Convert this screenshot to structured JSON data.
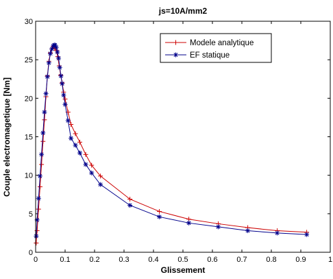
{
  "chart_data": {
    "type": "line",
    "title": "js=10A/mm2",
    "xlabel": "Glissement",
    "ylabel": "Couple electromagetique [Nm]",
    "xlim": [
      0,
      1
    ],
    "ylim": [
      0,
      30
    ],
    "xticks": [
      "0",
      "0.1",
      "0.2",
      "0.3",
      "0.4",
      "0.5",
      "0.6",
      "0.7",
      "0.8",
      "0.9",
      "1"
    ],
    "yticks": [
      "0",
      "5",
      "10",
      "15",
      "20",
      "25",
      "30"
    ],
    "grid": false,
    "legend_position": "top-right",
    "series": [
      {
        "name": "Modele analytique",
        "color": "#cc0000",
        "marker": "plus",
        "x": [
          0.002,
          0.005,
          0.01,
          0.015,
          0.02,
          0.025,
          0.03,
          0.035,
          0.04,
          0.045,
          0.05,
          0.055,
          0.06,
          0.065,
          0.07,
          0.075,
          0.08,
          0.085,
          0.09,
          0.095,
          0.1,
          0.11,
          0.12,
          0.135,
          0.15,
          0.17,
          0.19,
          0.22,
          0.32,
          0.42,
          0.52,
          0.62,
          0.72,
          0.82,
          0.92
        ],
        "y": [
          1.2,
          2.8,
          5.6,
          8.5,
          11.4,
          14.4,
          17.2,
          20.2,
          22.9,
          24.8,
          25.9,
          26.4,
          26.7,
          26.5,
          26.2,
          25.4,
          24.2,
          23.0,
          22.0,
          20.8,
          19.9,
          18.2,
          16.6,
          15.4,
          14.3,
          12.7,
          11.3,
          9.9,
          6.9,
          5.3,
          4.3,
          3.7,
          3.2,
          2.8,
          2.6
        ]
      },
      {
        "name": "EF statique",
        "color": "#00008b",
        "marker": "star",
        "x": [
          0.002,
          0.005,
          0.01,
          0.015,
          0.02,
          0.025,
          0.03,
          0.035,
          0.04,
          0.045,
          0.05,
          0.055,
          0.06,
          0.063,
          0.066,
          0.07,
          0.074,
          0.078,
          0.082,
          0.086,
          0.09,
          0.095,
          0.1,
          0.11,
          0.12,
          0.135,
          0.15,
          0.17,
          0.19,
          0.22,
          0.32,
          0.42,
          0.52,
          0.62,
          0.72,
          0.82,
          0.92
        ],
        "y": [
          2.1,
          4.2,
          7.0,
          9.9,
          12.7,
          15.5,
          18.2,
          20.6,
          22.8,
          24.6,
          25.8,
          26.4,
          26.8,
          26.9,
          26.9,
          26.6,
          26.0,
          25.2,
          24.0,
          22.9,
          21.9,
          20.4,
          19.2,
          17.1,
          14.8,
          13.9,
          12.9,
          11.4,
          10.3,
          8.8,
          6.1,
          4.6,
          3.8,
          3.3,
          2.8,
          2.5,
          2.3
        ]
      }
    ]
  }
}
